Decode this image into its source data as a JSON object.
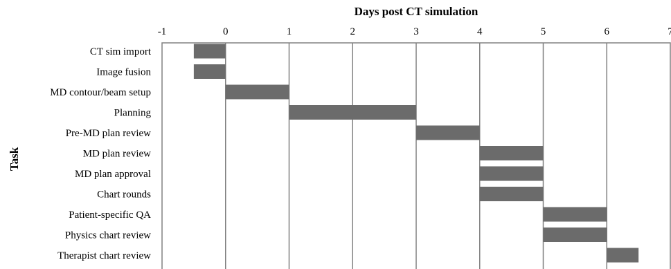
{
  "chart_data": {
    "type": "bar",
    "orientation": "horizontal-gantt",
    "title": "Days post CT simulation",
    "xlabel": "Days post CT simulation",
    "ylabel": "Task",
    "xlim": [
      -1,
      7
    ],
    "x_ticks": [
      "-1",
      "0",
      "1",
      "2",
      "3",
      "4",
      "5",
      "6",
      "7"
    ],
    "x_axis_position": "top",
    "grid": "vertical",
    "legend": "none",
    "bar_color": "#6b6b6b",
    "categories": [
      "CT sim import",
      "Image fusion",
      "MD contour/beam setup",
      "Planning",
      "Pre-MD plan review",
      "MD plan review",
      "MD plan approval",
      "Chart rounds",
      "Patient-specific QA",
      "Physics chart review",
      "Therapist chart review"
    ],
    "tasks": [
      {
        "task": "CT sim import",
        "start": -0.5,
        "end": 0
      },
      {
        "task": "Image fusion",
        "start": -0.5,
        "end": 0
      },
      {
        "task": "MD contour/beam setup",
        "start": 0,
        "end": 1
      },
      {
        "task": "Planning",
        "start": 1,
        "end": 3
      },
      {
        "task": "Pre-MD plan review",
        "start": 3,
        "end": 4
      },
      {
        "task": "MD plan review",
        "start": 4,
        "end": 5
      },
      {
        "task": "MD plan approval",
        "start": 4,
        "end": 5
      },
      {
        "task": "Chart rounds",
        "start": 4,
        "end": 5
      },
      {
        "task": "Patient-specific QA",
        "start": 5,
        "end": 6
      },
      {
        "task": "Physics chart review",
        "start": 5,
        "end": 6
      },
      {
        "task": "Therapist chart review",
        "start": 6,
        "end": 6.5
      }
    ]
  }
}
